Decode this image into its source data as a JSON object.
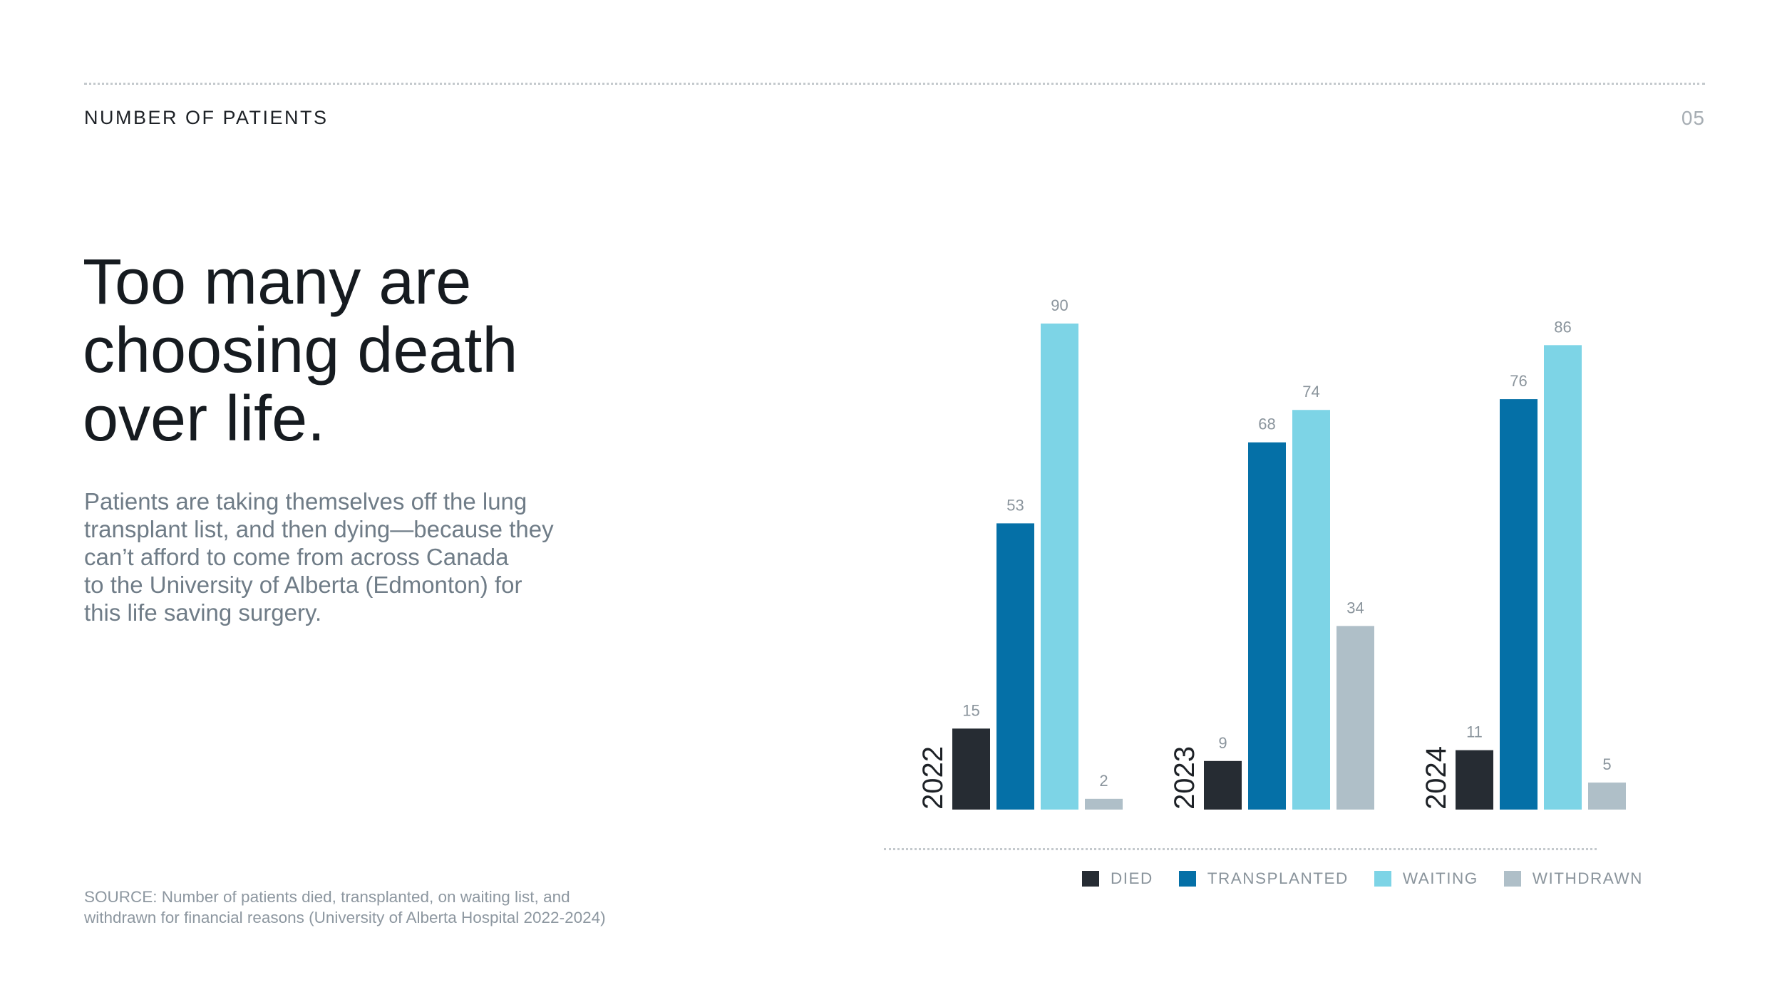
{
  "header": {
    "section_label": "NUMBER OF PATIENTS",
    "page_number": "05"
  },
  "headline": "Too many are choosing death over life.",
  "body": "Patients are taking themselves off the lung\ntransplant list, and then dying—because they\ncan’t afford to come from across Canada\nto the University of Alberta (Edmonton) for\nthis life saving surgery.",
  "source": "SOURCE: Number of patients died, transplanted, on waiting list, and\nwithdrawn for financial reasons (University of Alberta Hospital 2022-2024)",
  "chart_data": {
    "type": "bar",
    "categories": [
      "2022",
      "2023",
      "2024"
    ],
    "series": [
      {
        "name": "DIED",
        "color": "#262c33",
        "values": [
          15,
          9,
          11
        ]
      },
      {
        "name": "TRANSPLANTED",
        "color": "#0570a7",
        "values": [
          53,
          68,
          76
        ]
      },
      {
        "name": "WAITING",
        "color": "#7dd4e6",
        "values": [
          90,
          74,
          86
        ]
      },
      {
        "name": "WITHDRAWN",
        "color": "#afbfc8",
        "values": [
          2,
          34,
          5
        ]
      }
    ],
    "ylim": [
      0,
      90
    ],
    "legend_position": "bottom-right",
    "grid": false,
    "title": "",
    "xlabel": "",
    "ylabel": ""
  }
}
